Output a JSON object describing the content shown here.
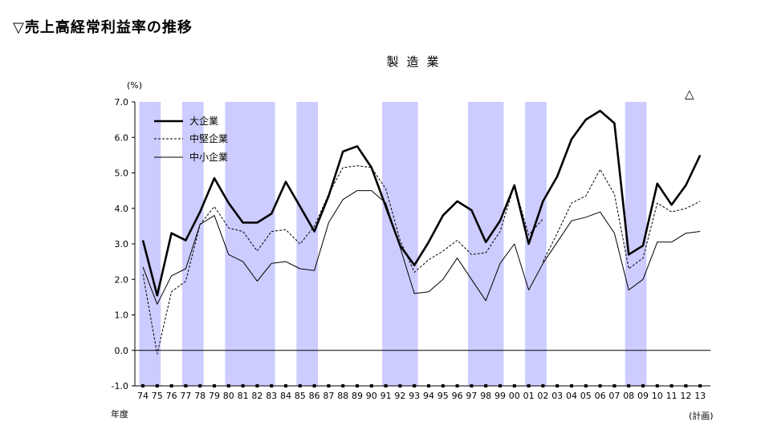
{
  "page": {
    "heading": "▽売上高経常利益率の推移"
  },
  "chart_data": {
    "type": "line",
    "title": "製造業",
    "ylabel": "(%)",
    "xlabel": "年度",
    "x_note": "(計画)",
    "marker_label": "△",
    "ylim": [
      -1.0,
      7.0
    ],
    "yticks": [
      "7.0",
      "6.0",
      "5.0",
      "4.0",
      "3.0",
      "2.0",
      "1.0",
      "0.0",
      "-1.0"
    ],
    "categories": [
      "74",
      "75",
      "76",
      "77",
      "78",
      "79",
      "80",
      "81",
      "82",
      "83",
      "84",
      "85",
      "86",
      "87",
      "88",
      "89",
      "90",
      "91",
      "92",
      "93",
      "94",
      "95",
      "96",
      "97",
      "98",
      "99",
      "00",
      "01",
      "02",
      "03",
      "04",
      "05",
      "06",
      "07",
      "08",
      "09",
      "10",
      "11",
      "12",
      "13"
    ],
    "shaded_periods": [
      [
        "74",
        "75"
      ],
      [
        "77",
        "78"
      ],
      [
        "80",
        "83"
      ],
      [
        "85",
        "86"
      ],
      [
        "91",
        "93"
      ],
      [
        "97",
        "99"
      ],
      [
        "01",
        "02"
      ],
      [
        "08",
        "09"
      ]
    ],
    "shade_color": "#ccccff",
    "series": [
      {
        "name": "大企業",
        "style": "thick-solid",
        "values": [
          3.1,
          1.55,
          3.3,
          3.1,
          3.9,
          4.85,
          4.15,
          3.6,
          3.6,
          3.85,
          4.75,
          4.05,
          3.35,
          4.35,
          5.6,
          5.75,
          5.15,
          4.05,
          2.95,
          2.4,
          3.05,
          3.8,
          4.2,
          3.95,
          3.05,
          3.65,
          4.65,
          3.0,
          4.2,
          4.9,
          5.95,
          6.5,
          6.75,
          6.4,
          2.7,
          2.95,
          4.7,
          4.1,
          4.65,
          5.5
        ]
      },
      {
        "name": "中堅企業",
        "style": "dashed",
        "values": [
          2.15,
          -0.1,
          1.65,
          1.95,
          3.55,
          4.05,
          3.45,
          3.35,
          2.8,
          3.35,
          3.4,
          3.0,
          3.5,
          4.4,
          5.15,
          5.2,
          5.15,
          4.55,
          3.1,
          2.2,
          2.55,
          2.8,
          3.1,
          2.7,
          2.75,
          3.35,
          4.65,
          3.25,
          3.7,
          null,
          null,
          null,
          null,
          null,
          null,
          null,
          null,
          null,
          null,
          null
        ],
        "values_segment2": [
          null,
          null,
          null,
          null,
          null,
          null,
          null,
          null,
          null,
          null,
          null,
          null,
          null,
          null,
          null,
          null,
          null,
          null,
          null,
          null,
          null,
          null,
          null,
          null,
          null,
          null,
          null,
          null,
          2.5,
          3.3,
          4.15,
          4.35,
          5.1,
          4.4,
          2.3,
          2.6,
          4.15,
          3.9,
          4.0,
          4.2
        ]
      },
      {
        "name": "中小企業",
        "style": "thin-solid",
        "values": [
          2.35,
          1.3,
          2.1,
          2.3,
          3.55,
          3.8,
          2.7,
          2.5,
          1.95,
          2.45,
          2.5,
          2.3,
          2.25,
          3.6,
          4.25,
          4.5,
          4.5,
          4.15,
          2.9,
          1.6,
          1.65,
          2.0,
          2.6,
          2.0,
          1.4,
          2.45,
          3.0,
          1.7,
          2.45,
          3.05,
          3.65,
          3.75,
          3.9,
          3.3,
          1.7,
          2.0,
          3.05,
          3.05,
          3.3,
          3.35
        ]
      }
    ]
  }
}
